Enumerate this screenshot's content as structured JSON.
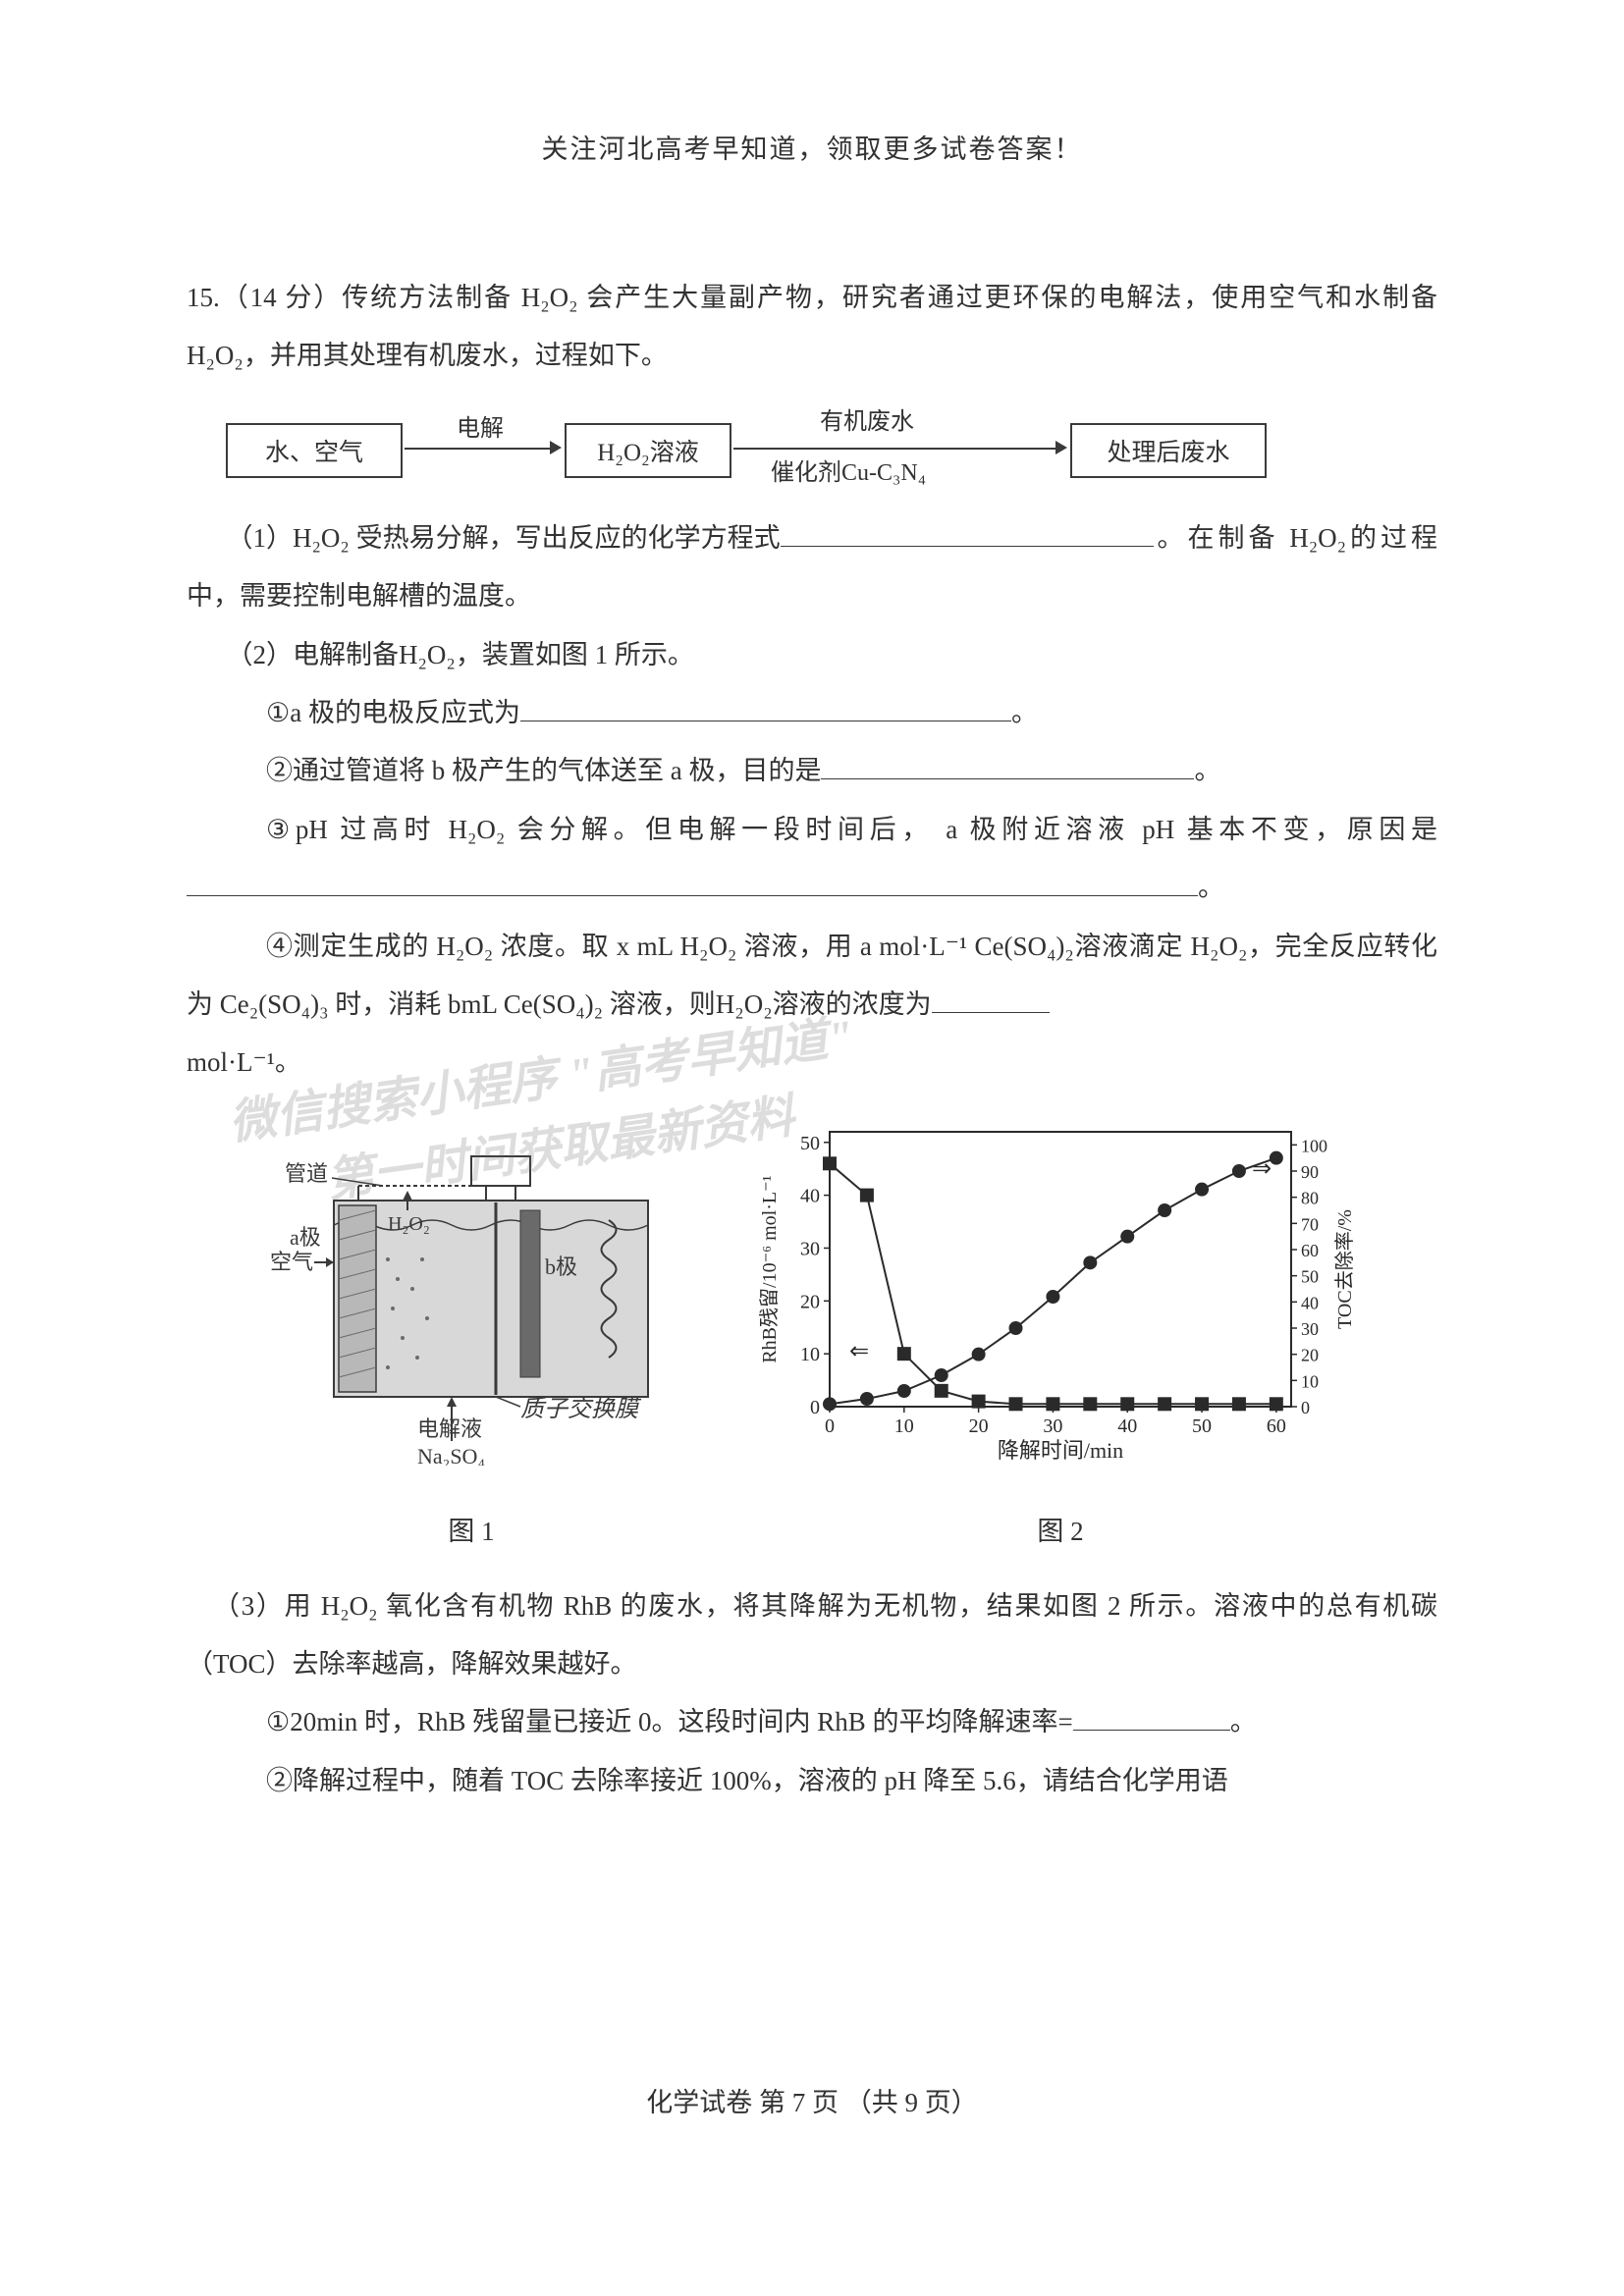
{
  "header": "关注河北高考早知道，领取更多试卷答案！",
  "q15": {
    "intro": "15.（14 分）传统方法制备 H₂O₂ 会产生大量副产物，研究者通过更环保的电解法，使用空气和水制备H₂O₂，并用其处理有机废水，过程如下。",
    "flow": {
      "box1": "水、空气",
      "arrow1_label": "电解",
      "box2": "H₂O₂溶液",
      "arrow2_top": "有机废水",
      "arrow2_bottom": "催化剂Cu-C₃N₄",
      "box3": "处理后废水"
    },
    "part1": "（1）H₂O₂ 受热易分解，写出反应的化学方程式",
    "part1_tail": "。在制备 H₂O₂的过程中，需要控制电解槽的温度。",
    "part2_intro": "（2）电解制备H₂O₂，装置如图 1 所示。",
    "part2_1": "①a 极的电极反应式为",
    "part2_2": "②通过管道将 b 极产生的气体送至 a 极，目的是",
    "part2_3a": "③pH 过高时 H₂O₂ 会分解。但电解一段时间后， a 极附近溶液 pH 基本不变，原因是",
    "part2_4": "④测定生成的 H₂O₂ 浓度。取 x mL H₂O₂ 溶液，用  a mol·L⁻¹ Ce(SO₄)₂溶液滴定 H₂O₂，完全反应转化为 Ce₂(SO₄)₃ 时，消耗 bmL Ce(SO₄)₂ 溶液，则H₂O₂溶液的浓度为",
    "part2_4_unit": "mol·L⁻¹。",
    "fig1": {
      "caption": "图 1",
      "labels": {
        "pipe": "管道",
        "air": "空气",
        "a_pole": "a极",
        "h2o2": "H₂O₂",
        "b_pole": "b极",
        "membrane": "质子交换膜",
        "electrolyte_arrow": "电解液",
        "electrolyte": "Na₂SO₄"
      }
    },
    "fig2": {
      "caption": "图 2",
      "type": "dual-axis-line",
      "xlabel": "降解时间/min",
      "ylabel_left": "RhB残留/10⁻⁶ mol·L⁻¹",
      "ylabel_right": "TOC去除率/%",
      "x_ticks": [
        0,
        10,
        20,
        30,
        40,
        50,
        60
      ],
      "y_left_ticks": [
        0,
        10,
        20,
        30,
        40,
        50
      ],
      "y_right_ticks": [
        0,
        10,
        20,
        30,
        40,
        50,
        60,
        70,
        80,
        90,
        100
      ],
      "xlim": [
        0,
        62
      ],
      "ylim_left": [
        0,
        52
      ],
      "ylim_right": [
        0,
        105
      ],
      "series_circles": {
        "label": "TOC去除率",
        "marker": "circle",
        "color": "#2a2a2a",
        "data_x": [
          0,
          5,
          10,
          15,
          20,
          25,
          30,
          35,
          40,
          45,
          50,
          55,
          60
        ],
        "data_y_right": [
          1,
          3,
          6,
          12,
          20,
          30,
          42,
          55,
          65,
          75,
          83,
          90,
          95
        ]
      },
      "series_squares": {
        "label": "RhB残留",
        "marker": "square",
        "color": "#2a2a2a",
        "data_x": [
          0,
          5,
          10,
          15,
          20,
          25,
          30,
          35,
          40,
          45,
          50,
          55,
          60
        ],
        "data_y_left": [
          46,
          40,
          10,
          3,
          1,
          0.5,
          0.5,
          0.5,
          0.5,
          0.5,
          0.5,
          0.5,
          0.5
        ]
      },
      "background_color": "#ffffff",
      "axis_color": "#2a2a2a",
      "line_width": 2,
      "marker_size": 7
    },
    "part3_intro": "（3）用 H₂O₂ 氧化含有机物 RhB 的废水，将其降解为无机物，结果如图 2 所示。溶液中的总有机碳（TOC）去除率越高，降解效果越好。",
    "part3_1": "①20min 时，RhB 残留量已接近 0。这段时间内 RhB 的平均降解速率=",
    "part3_2": "②降解过程中，随着 TOC 去除率接近 100%，溶液的 pH 降至 5.6，请结合化学用语"
  },
  "watermarks": {
    "w1": "微信搜索小程序 \"高考早知道\"",
    "w2": "第一时间获取最新资料"
  },
  "footer": "化学试卷   第 7 页  （共 9 页）",
  "colors": {
    "text": "#323232",
    "border": "#3a3a3a",
    "watermark": "rgba(100,100,100,0.22)",
    "diagram_fill": "#d8d8d8",
    "diagram_fill_dark": "#b8b8b8"
  }
}
